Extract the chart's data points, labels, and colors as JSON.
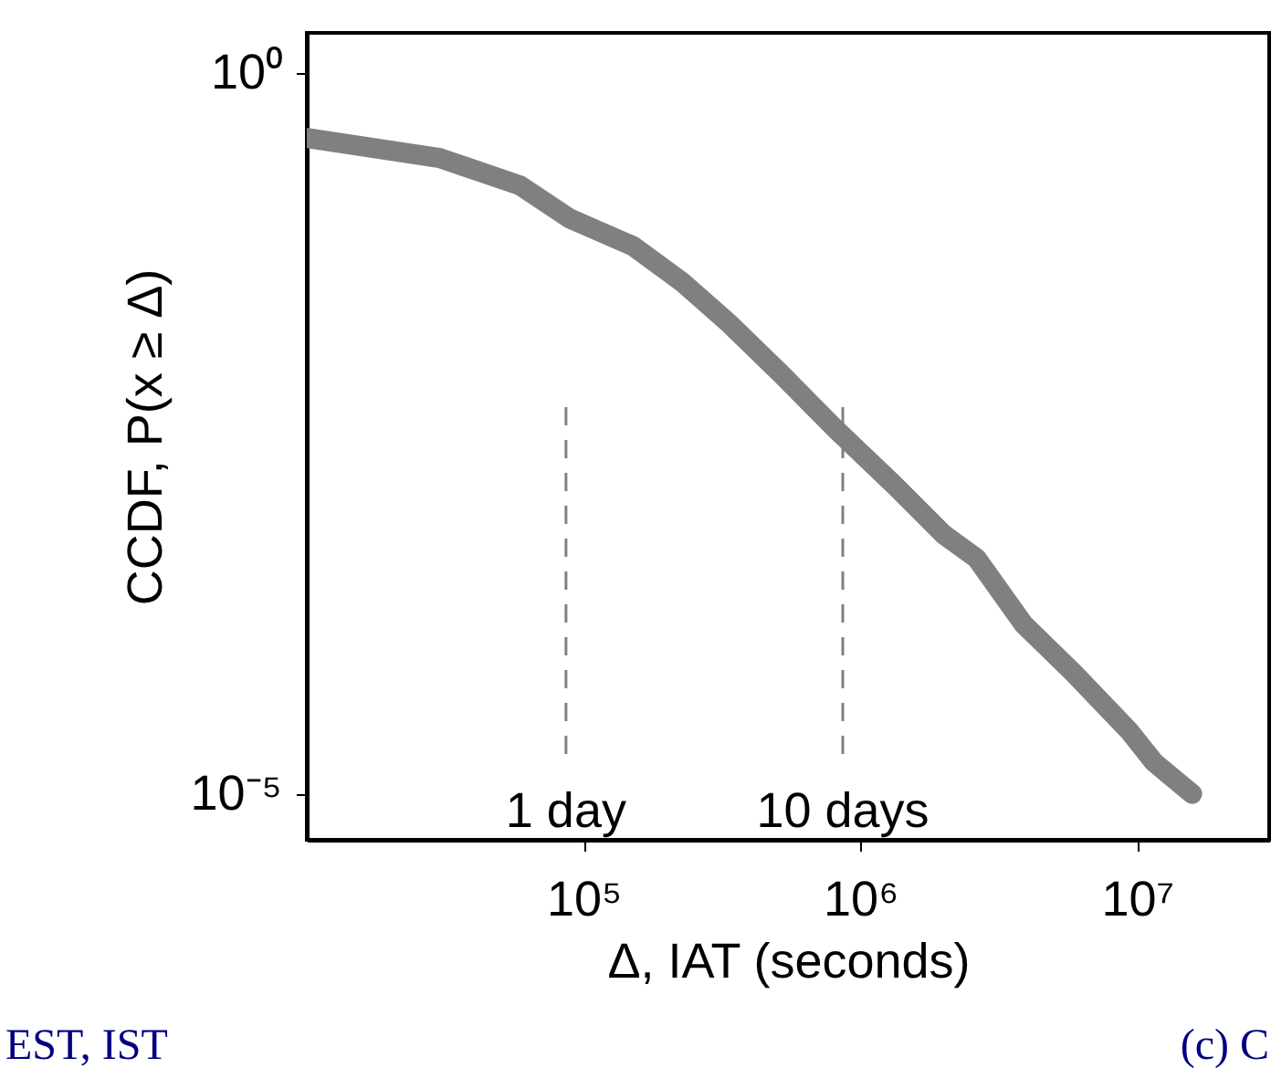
{
  "chart_data": {
    "type": "line",
    "xlabel": "Δ, IAT (seconds)",
    "ylabel": "CCDF, P(x ≥ Δ)",
    "log": "xy",
    "xlim": [
      10000,
      30000000
    ],
    "ylim": [
      4.8e-06,
      1.9
    ],
    "xticks": [
      {
        "value": 100000,
        "label": "10⁵"
      },
      {
        "value": 1000000,
        "label": "10⁶"
      },
      {
        "value": 10000000,
        "label": "10⁷"
      }
    ],
    "yticks": [
      {
        "value": 1,
        "label": "10⁰"
      },
      {
        "value": 1e-05,
        "label": "10⁻⁵"
      }
    ],
    "series": [
      {
        "color": "#808080",
        "x": [
          10000,
          30200,
          58900,
          89100,
          151000,
          229000,
          339000,
          513000,
          813000,
          1320000,
          2000000,
          2630000,
          3890000,
          5890000,
          9330000,
          11500000,
          15800000
        ],
        "values": [
          0.355,
          0.257,
          0.166,
          0.098,
          0.063,
          0.035,
          0.018,
          0.0083,
          0.0034,
          0.0014,
          0.00063,
          0.00043,
          0.00015,
          6.9e-05,
          2.75e-05,
          1.66e-05,
          1e-05
        ]
      }
    ],
    "ref_lines": [
      {
        "axis": "x",
        "value": 86400,
        "label": "1 day",
        "color": "#808080",
        "line_style": "dashed"
      },
      {
        "axis": "x",
        "value": 864000,
        "label": "10 days",
        "color": "#808080",
        "line_style": "dashed"
      }
    ],
    "annotations": [
      "EST, IST",
      "(c) C"
    ],
    "grid": false,
    "marker": "none",
    "line_style": "solid"
  }
}
